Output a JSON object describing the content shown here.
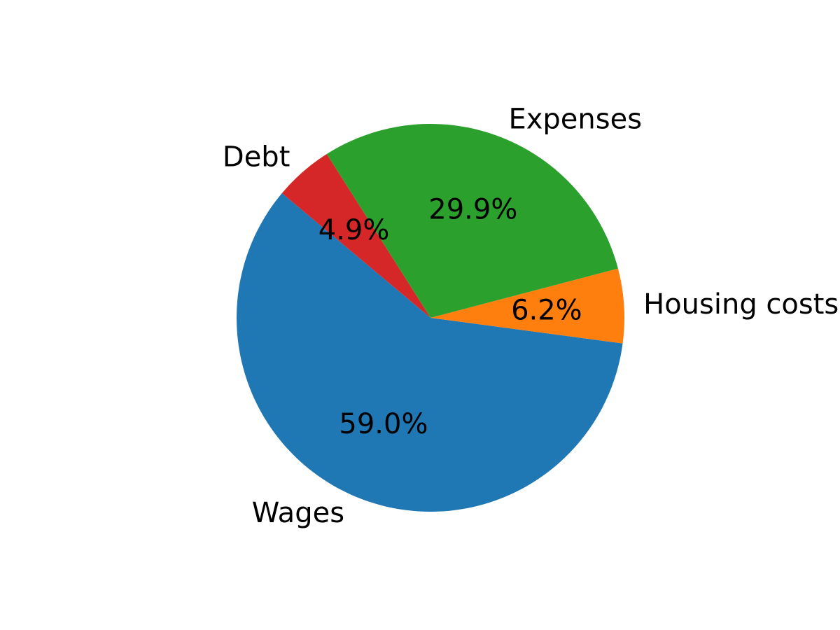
{
  "chart_data": {
    "type": "pie",
    "title": "",
    "start_angle_deg": 140,
    "direction": "counterclockwise",
    "slices": [
      {
        "label": "Wages",
        "value": 59.0,
        "pct_label": "59.0%",
        "color": "#1f77b4"
      },
      {
        "label": "Housing costs",
        "value": 6.2,
        "pct_label": "6.2%",
        "color": "#ff7f0e"
      },
      {
        "label": "Expenses",
        "value": 29.9,
        "pct_label": "29.9%",
        "color": "#2ca02c"
      },
      {
        "label": "Debt",
        "value": 4.9,
        "pct_label": "4.9%",
        "color": "#d62728"
      }
    ]
  }
}
